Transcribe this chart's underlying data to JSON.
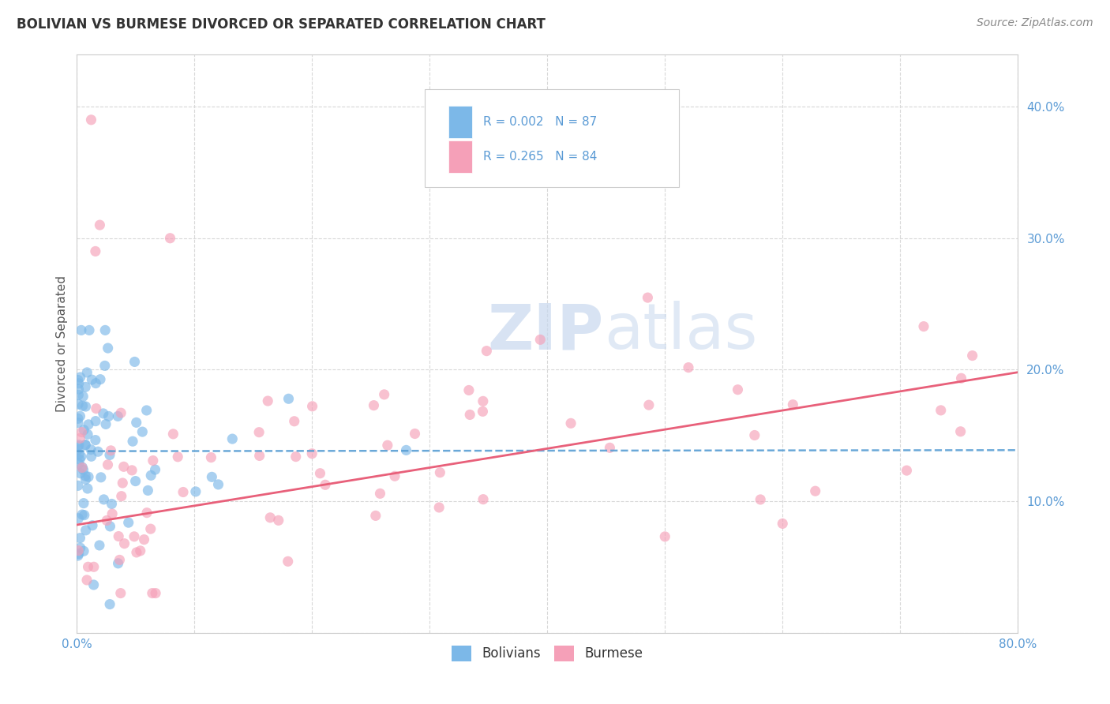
{
  "title": "BOLIVIAN VS BURMESE DIVORCED OR SEPARATED CORRELATION CHART",
  "source": "Source: ZipAtlas.com",
  "ylabel": "Divorced or Separated",
  "xlim": [
    0.0,
    0.8
  ],
  "ylim": [
    0.0,
    0.44
  ],
  "xticks": [
    0.0,
    0.1,
    0.2,
    0.3,
    0.4,
    0.5,
    0.6,
    0.7,
    0.8
  ],
  "yticks": [
    0.0,
    0.1,
    0.2,
    0.3,
    0.4
  ],
  "legend_r1": "R = 0.002",
  "legend_n1": "N = 87",
  "legend_r2": "R = 0.265",
  "legend_n2": "N = 84",
  "legend_label1": "Bolivians",
  "legend_label2": "Burmese",
  "blue_color": "#7cb8e8",
  "pink_color": "#f5a0b8",
  "blue_line_color": "#5a9fd4",
  "pink_line_color": "#e8607a",
  "watermark_zip": "ZIP",
  "watermark_atlas": "atlas",
  "title_color": "#333333",
  "tick_color": "#5b9bd5",
  "grid_color": "#d8d8d8",
  "source_color": "#888888",
  "ylabel_color": "#555555",
  "blue_intercept": 0.138,
  "blue_slope": 0.001,
  "pink_intercept": 0.082,
  "pink_slope": 0.145
}
